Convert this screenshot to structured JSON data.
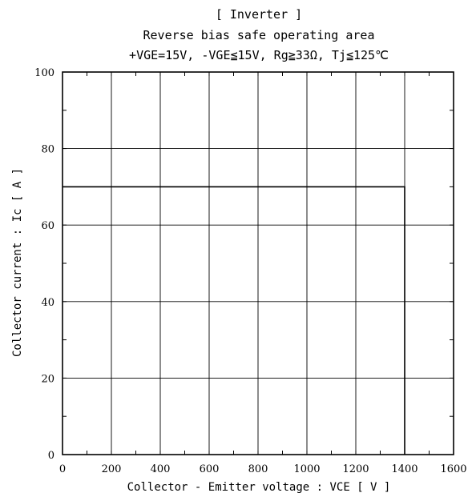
{
  "chart_data": {
    "type": "line",
    "title": "[ Inverter ]",
    "subtitle": "Reverse bias safe operating area",
    "conditions": "+VGE=15V, -VGE≦15V, Rg≧33Ω, Tj≦125℃",
    "xlabel": "Collector - Emitter voltage  :  VCE  [ V ]",
    "ylabel": "Collector current  :  Ic  [ A ]",
    "xlim": [
      0,
      1600
    ],
    "ylim": [
      0,
      100
    ],
    "x_ticks": [
      0,
      200,
      400,
      600,
      800,
      1000,
      1200,
      1400,
      1600
    ],
    "y_ticks": [
      0,
      20,
      40,
      60,
      80,
      100
    ],
    "grid": true,
    "series": [
      {
        "x": [
          0,
          1400,
          1400
        ],
        "y": [
          70,
          70,
          0
        ]
      }
    ]
  }
}
